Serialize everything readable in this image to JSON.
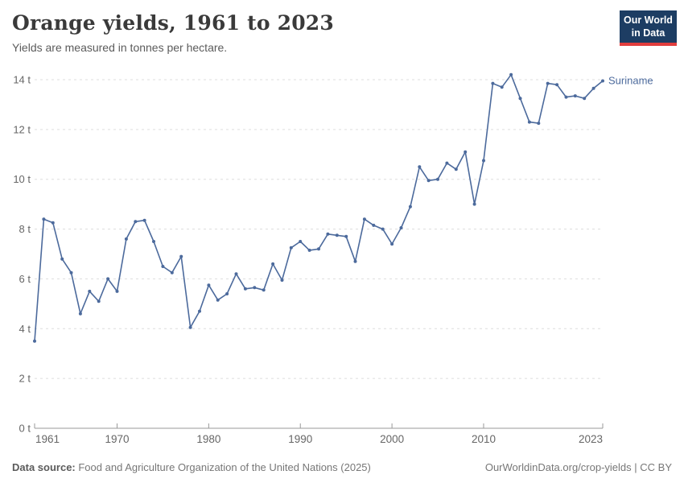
{
  "header": {
    "title": "Orange yields, 1961 to 2023",
    "subtitle": "Yields are measured in tonnes per hectare.",
    "logo": {
      "line1": "Our World",
      "line2": "in Data"
    }
  },
  "footer": {
    "source_label": "Data source:",
    "source_text": " Food and Agriculture Organization of the United Nations (2025)",
    "credit": "OurWorldinData.org/crop-yields | CC BY"
  },
  "colors": {
    "line": "#4c6a9c",
    "grid": "#dddddd",
    "axis": "#999999",
    "tick_text": "#666666",
    "logo_bg": "#1d3d63",
    "logo_red": "#e13d3d"
  },
  "chart_data": {
    "type": "line",
    "title": "Orange yields, 1961 to 2023",
    "ylabel": "tonnes per hectare",
    "series_name": "Suriname",
    "grid": true,
    "legend_position": "end-of-line",
    "xlim": [
      1961,
      2023
    ],
    "ylim": [
      0,
      14
    ],
    "x_ticks": [
      1961,
      1970,
      1980,
      1990,
      2000,
      2010,
      2023
    ],
    "y_ticks": [
      0,
      2,
      4,
      6,
      8,
      10,
      12,
      14
    ],
    "y_tick_suffix": " t",
    "x": [
      1961,
      1962,
      1963,
      1964,
      1965,
      1966,
      1967,
      1968,
      1969,
      1970,
      1971,
      1972,
      1973,
      1974,
      1975,
      1976,
      1977,
      1978,
      1979,
      1980,
      1981,
      1982,
      1983,
      1984,
      1985,
      1986,
      1987,
      1988,
      1989,
      1990,
      1991,
      1992,
      1993,
      1994,
      1995,
      1996,
      1997,
      1998,
      1999,
      2000,
      2001,
      2002,
      2003,
      2004,
      2005,
      2006,
      2007,
      2008,
      2009,
      2010,
      2011,
      2012,
      2013,
      2014,
      2015,
      2016,
      2017,
      2018,
      2019,
      2020,
      2021,
      2022,
      2023
    ],
    "values": [
      3.5,
      8.4,
      8.25,
      6.8,
      6.25,
      4.6,
      5.5,
      5.1,
      6.0,
      5.5,
      7.6,
      8.3,
      8.35,
      7.5,
      6.5,
      6.25,
      6.9,
      4.05,
      4.7,
      5.75,
      5.15,
      5.4,
      6.2,
      5.6,
      5.65,
      5.55,
      6.6,
      5.95,
      7.25,
      7.5,
      7.15,
      7.2,
      7.8,
      7.75,
      7.7,
      6.7,
      8.4,
      8.15,
      8.0,
      7.4,
      8.05,
      8.9,
      10.5,
      9.95,
      10.0,
      10.65,
      10.4,
      11.1,
      9.0,
      10.75,
      13.85,
      13.7,
      14.2,
      13.25,
      12.3,
      12.25,
      13.85,
      13.8,
      13.3,
      13.35,
      13.25,
      13.65,
      13.95
    ]
  }
}
